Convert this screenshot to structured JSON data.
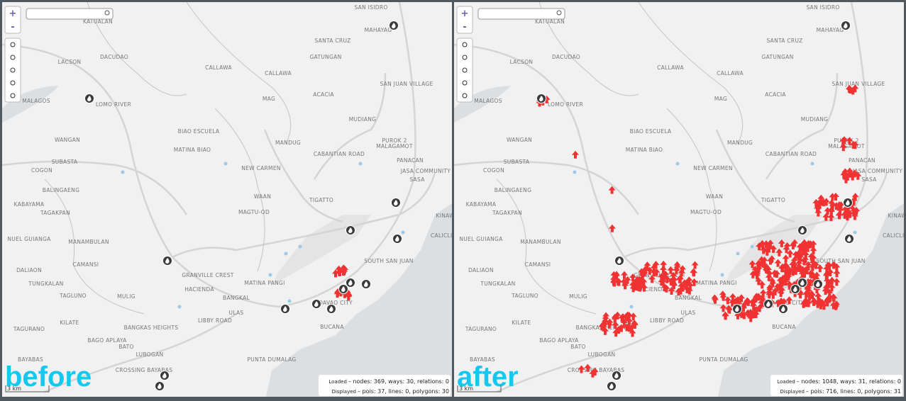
{
  "map_labels": [
    "SAN ISIDRO",
    "KATUALAN",
    "MAHAYAG",
    "SANTA CRUZ",
    "LACSON",
    "DACUDAO",
    "GATUNGAN",
    "CALLAWA",
    "SAN JUAN VILLAGE",
    "MALAGOS",
    "LOMO RIVER",
    "MAG",
    "ACACIA",
    "MUDIANG",
    "WANGAN",
    "BIAO ESCUELA",
    "MANDUG",
    "PUROK 2",
    "MALAGAMOT",
    "MATINA BIAO",
    "CABANTIAN ROAD",
    "SUBASTA",
    "PANACAN",
    "COGON",
    "NEW CARMEN",
    "JASA COMMUNITY",
    "SASA",
    "BALINGAENG",
    "WAAN",
    "TIGATTO",
    "KABAYAMA",
    "TAGAKPAN",
    "MAGTU-OD",
    "KINAWI",
    "NUEL GUIANGA",
    "MANAMBULAN",
    "CALICLIC",
    "SOUTH SAN JUAN",
    "DALIAON",
    "CAMANSI",
    "GRANVILLE CREST",
    "TUNGKALAN",
    "HACIENDA",
    "MATINA PANGI",
    "TAGLUNO",
    "MULIG",
    "BANGKAL",
    "ULAS",
    "LIBBY ROAD",
    "KILATE",
    "BANGKAS HEIGHTS",
    "DAVAO CITY",
    "BUCANA",
    "TAGURANO",
    "BAGO APLAYA",
    "BATO",
    "LUBOGAN",
    "PUNTA DUMALAG",
    "BAYABAS",
    "CROSSING BAYABAS"
  ],
  "panels": [
    {
      "caption": "before",
      "scale": "3 km",
      "zoom_in": "+",
      "zoom_out": "-",
      "status": {
        "loaded_label": "Loaded",
        "loaded": "– nodes: 369, ways: 30, relations: 0",
        "displayed_label": "Displayed",
        "displayed": "– pois: 37, lines: 0, polygons: 30"
      }
    },
    {
      "caption": "after",
      "scale": "3 km",
      "zoom_in": "+",
      "zoom_out": "-",
      "status": {
        "loaded_label": "Loaded",
        "loaded": "– nodes: 1048, ways: 31, relations: 0",
        "displayed_label": "Displayed",
        "displayed": "– pois: 716, lines: 0, polygons: 31"
      }
    }
  ]
}
